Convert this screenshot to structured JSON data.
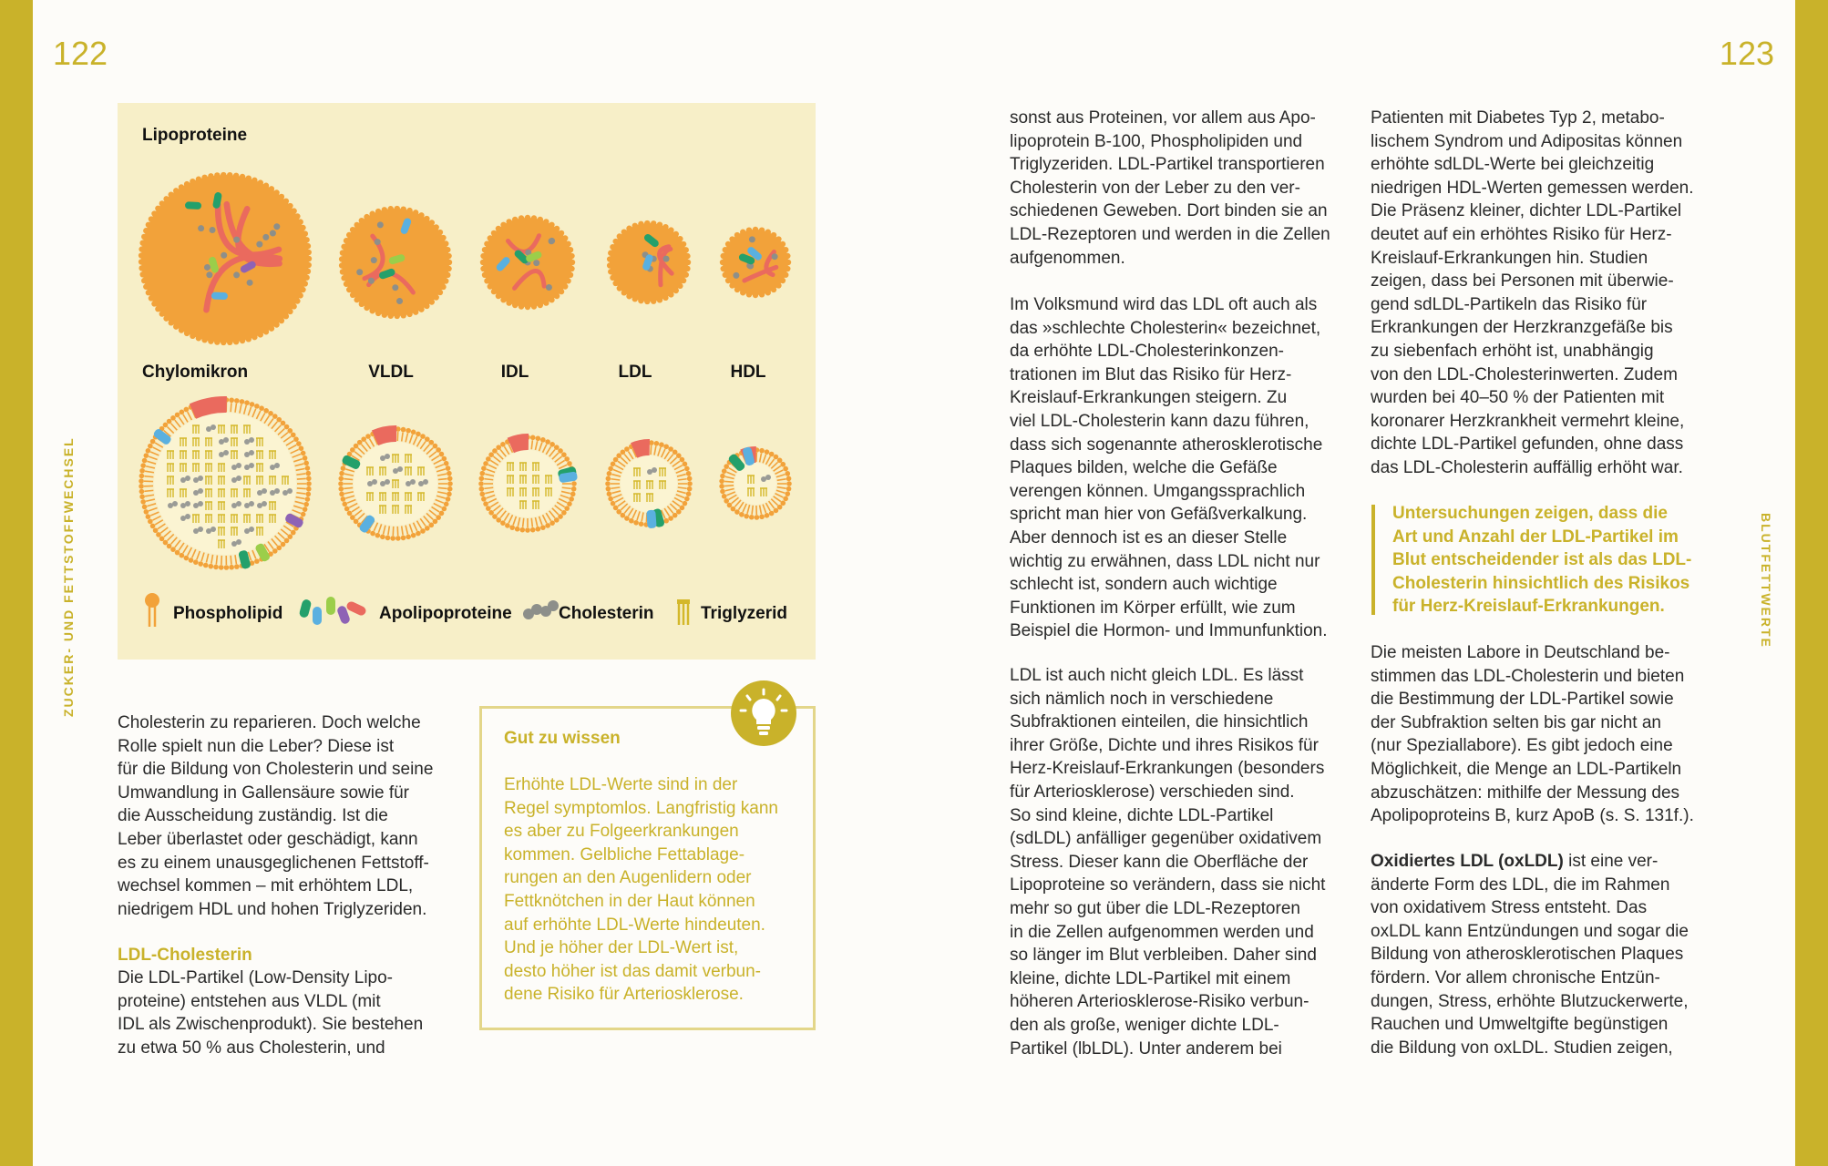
{
  "colors": {
    "accent": "#c9b22a",
    "figure_bg": "#f7efc8",
    "particle": "#f2a23a",
    "apo_red": "#ea6a5e"
  },
  "left_page": {
    "page_number": "122",
    "side_label": "ZUCKER- UND FETTSTOFFWECHSEL",
    "figure": {
      "title": "Lipoproteine",
      "particles": [
        "Chylomikron",
        "VLDL",
        "IDL",
        "LDL",
        "HDL"
      ],
      "legend": [
        "Phospholipid",
        "Apolipoproteine",
        "Cholesterin",
        "Triglyzerid"
      ]
    },
    "p1": [
      "Cholesterin zu reparieren. Doch welche",
      "Rolle spielt nun die Leber? Diese ist",
      "für die Bildung von Cholesterin und seine",
      "Umwandlung in Gallensäure sowie für",
      "die Ausscheidung zuständig. Ist die",
      "Leber überlastet oder geschädigt, kann",
      "es zu einem unausgeglichenen Fettstoff-",
      "wechsel kommen – mit erhöhtem LDL,",
      "niedrigem HDL und hohen Triglyzeriden."
    ],
    "heading": "LDL-Cholesterin",
    "p2": [
      "Die LDL-Partikel (Low-Density Lipo-",
      "proteine) entstehen aus VLDL (mit",
      "IDL als Zwischenprodukt). Sie bestehen",
      "zu etwa 50 % aus Cholesterin, und"
    ],
    "tip": {
      "icon": "lightbulb-icon",
      "title": "Gut zu wissen",
      "lines": [
        "Erhöhte LDL-Werte sind in der",
        "Regel symptomlos. Langfristig kann",
        "es aber zu Folgeerkrankungen",
        "kommen. Gelbliche Fettablage-",
        "rungen an den Augenlidern oder",
        "Fettknötchen in der Haut können",
        "auf erhöhte LDL-Werte hindeuten.",
        "Und je höher der LDL-Wert ist,",
        "desto höher ist das damit verbun-",
        "dene Risiko für Arteriosklerose."
      ]
    }
  },
  "right_page": {
    "page_number": "123",
    "side_label": "BLUTFETTWERTE",
    "mid_p1": [
      "sonst aus Proteinen, vor allem aus Apo-",
      "lipoprotein B-100, Phospholipiden und",
      "Triglyzeriden. LDL-Partikel transportieren",
      "Cholesterin von der Leber zu den ver-",
      "schiedenen Geweben. Dort binden sie an",
      "LDL-Rezeptoren und werden in die Zellen",
      "aufgenommen."
    ],
    "mid_p2": [
      "Im Volksmund wird das LDL oft auch als",
      "das »schlechte Cholesterin« bezeichnet,",
      "da erhöhte LDL-Cholesterinkonzen-",
      "trationen im Blut das Risiko für Herz-",
      "Kreislauf-Erkrankungen steigern. Zu",
      "viel LDL-Cholesterin kann dazu führen,",
      "dass sich sogenannte atherosklerotische",
      "Plaques bilden, welche die Gefäße",
      "verengen können. Umgangssprachlich",
      "spricht man hier von Gefäßverkalkung.",
      "Aber dennoch ist es an dieser Stelle",
      "wichtig zu erwähnen, dass LDL nicht nur",
      "schlecht ist, sondern auch wichtige",
      "Funktionen im Körper erfüllt, wie zum",
      "Beispiel die Hormon- und Immunfunktion."
    ],
    "mid_p3": [
      "LDL ist auch nicht gleich LDL. Es lässt",
      "sich nämlich noch in verschiedene",
      "Subfraktionen einteilen, die hinsichtlich",
      "ihrer Größe, Dichte und ihres Risikos für",
      "Herz-Kreislauf-Erkrankungen (besonders",
      "für Arteriosklerose) verschieden sind.",
      "So sind kleine, dichte LDL-Partikel",
      "(sdLDL) anfälliger gegenüber oxidativem",
      "Stress. Dieser kann die Oberfläche der",
      "Lipoproteine so verändern, dass sie nicht",
      "mehr so gut über die LDL-Rezeptoren",
      "in die Zellen aufgenommen werden und",
      "so länger im Blut verbleiben. Daher sind",
      "kleine, dichte LDL-Partikel mit einem",
      "höheren Arteriosklerose-Risiko verbun-",
      "den als große, weniger dichte LDL-",
      "Partikel (lbLDL). Unter anderem bei"
    ],
    "right_p1": [
      "Patienten mit Diabetes Typ 2, metabo-",
      "lischem Syndrom und Adipositas können",
      "erhöhte sdLDL-Werte bei gleichzeitig",
      "niedrigen HDL-Werten gemessen werden.",
      "Die Präsenz kleiner, dichter LDL-Partikel",
      "deutet auf ein erhöhtes Risiko für Herz-",
      "Kreislauf-Erkrankungen hin. Studien",
      "zeigen, dass bei Personen mit überwie-",
      "gend sdLDL-Partikeln das Risiko für",
      "Erkrankungen der Herzkranzgefäße bis",
      "zu siebenfach erhöht ist, unabhängig",
      "von den LDL-Cholesterinwerten. Zudem",
      "wurden bei 40–50 % der Patienten mit",
      "koronarer Herzkrankheit vermehrt kleine,",
      "dichte LDL-Partikel gefunden, ohne dass",
      "das LDL-Cholesterin auffällig erhöht war."
    ],
    "quote": [
      "Untersuchungen zeigen, dass die",
      "Art und Anzahl der LDL-Partikel im",
      "Blut entscheidender ist als das LDL-",
      "Cholesterin hinsichtlich des Risikos",
      "für Herz-Kreislauf-Erkrankungen."
    ],
    "right_p2": [
      "Die meisten Labore in Deutschland be-",
      "stimmen das LDL-Cholesterin und bieten",
      "die Bestimmung der LDL-Partikel sowie",
      "der Subfraktion selten bis gar nicht an",
      "(nur Speziallabore). Es gibt jedoch eine",
      "Möglichkeit, die Menge an LDL-Partikeln",
      "abzuschätzen: mithilfe der Messung des",
      "Apolipoproteins B, kurz ApoB (s. S. 131f.)."
    ],
    "right_p3_lead": "Oxidiertes LDL (oxLDL)",
    "right_p3_lead_rest": " ist eine ver-",
    "right_p3": [
      "änderte Form des LDL, die im Rahmen",
      "von oxidativem Stress entsteht. Das",
      "oxLDL kann Entzündungen und sogar die",
      "Bildung von atherosklerotischen Plaques",
      "fördern. Vor allem chronische Entzün-",
      "dungen, Stress, erhöhte Blutzuckerwerte,",
      "Rauchen und Umweltgifte begünstigen",
      "die Bildung von oxLDL. Studien zeigen,"
    ]
  }
}
